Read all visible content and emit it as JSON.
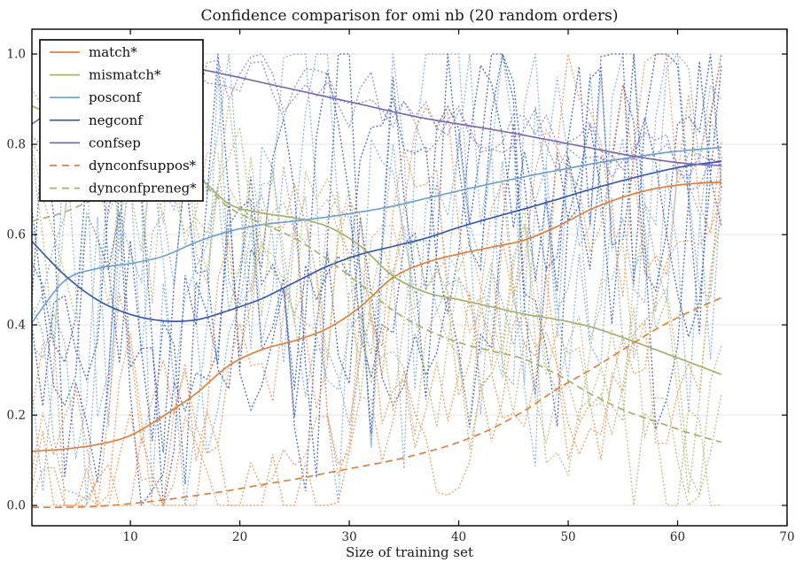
{
  "chart_data": {
    "type": "line",
    "title": "Confidence comparison for omi nb (20 random orders)",
    "xlabel": "Size of training set",
    "ylabel": "",
    "xlim": [
      1,
      70
    ],
    "ylim": [
      -0.045,
      1.055
    ],
    "xticks": [
      10,
      20,
      30,
      40,
      50,
      60,
      70
    ],
    "yticks": [
      0.0,
      0.2,
      0.4,
      0.6,
      0.8,
      1.0
    ],
    "grid": "horizontal",
    "legend_position": "upper-left",
    "x": [
      1,
      4,
      7,
      10,
      13,
      16,
      19,
      22,
      25,
      28,
      31,
      34,
      37,
      40,
      43,
      46,
      49,
      52,
      55,
      58,
      61,
      64
    ],
    "series": [
      {
        "name": "match*",
        "color": "#E0813C",
        "style": "solid",
        "values": [
          0.12,
          0.125,
          0.135,
          0.155,
          0.198,
          0.248,
          0.31,
          0.345,
          0.365,
          0.392,
          0.44,
          0.505,
          0.538,
          0.557,
          0.572,
          0.588,
          0.618,
          0.655,
          0.683,
          0.702,
          0.712,
          0.716
        ]
      },
      {
        "name": "mismatch*",
        "color": "#A6B16D",
        "style": "solid",
        "values": [
          0.885,
          0.852,
          0.815,
          0.788,
          0.762,
          0.732,
          0.668,
          0.648,
          0.637,
          0.618,
          0.575,
          0.508,
          0.472,
          0.456,
          0.44,
          0.424,
          0.412,
          0.396,
          0.372,
          0.345,
          0.318,
          0.29
        ]
      },
      {
        "name": "posconf",
        "color": "#6FA2CE",
        "style": "solid",
        "values": [
          0.405,
          0.498,
          0.525,
          0.536,
          0.552,
          0.583,
          0.607,
          0.622,
          0.63,
          0.639,
          0.65,
          0.663,
          0.68,
          0.697,
          0.713,
          0.728,
          0.742,
          0.756,
          0.768,
          0.779,
          0.787,
          0.793
        ]
      },
      {
        "name": "negconf",
        "color": "#3A5BAE",
        "style": "solid",
        "values": [
          0.585,
          0.51,
          0.455,
          0.423,
          0.409,
          0.411,
          0.432,
          0.458,
          0.494,
          0.53,
          0.556,
          0.574,
          0.592,
          0.616,
          0.637,
          0.657,
          0.678,
          0.7,
          0.72,
          0.738,
          0.753,
          0.762
        ]
      },
      {
        "name": "confsep",
        "color": "#7D6CB0",
        "style": "solid",
        "values": [
          0.845,
          0.893,
          0.932,
          0.956,
          0.968,
          0.967,
          0.953,
          0.937,
          0.921,
          0.905,
          0.889,
          0.872,
          0.857,
          0.845,
          0.833,
          0.82,
          0.806,
          0.792,
          0.778,
          0.766,
          0.757,
          0.753
        ]
      },
      {
        "name": "dynconfsuppos*",
        "color": "#E0813C",
        "style": "dashed",
        "values": [
          -0.004,
          -0.004,
          -0.002,
          0.004,
          0.012,
          0.022,
          0.033,
          0.046,
          0.058,
          0.072,
          0.086,
          0.1,
          0.118,
          0.14,
          0.17,
          0.21,
          0.258,
          0.3,
          0.345,
          0.39,
          0.428,
          0.46
        ]
      },
      {
        "name": "dynconfpreneg*",
        "color": "#A6B16D",
        "style": "dashed",
        "values": [
          0.63,
          0.65,
          0.682,
          0.71,
          0.726,
          0.722,
          0.66,
          0.625,
          0.592,
          0.545,
          0.49,
          0.432,
          0.39,
          0.361,
          0.342,
          0.324,
          0.29,
          0.248,
          0.212,
          0.186,
          0.161,
          0.14
        ]
      }
    ],
    "background_runs": {
      "description": "dotted noisy lines = individual runs over 20 random orders",
      "x_range": [
        1,
        64
      ],
      "line_style": "dotted",
      "runs": [
        {
          "color": "#8FB4DC",
          "base": "posconf",
          "amp": 0.36,
          "seed": 11
        },
        {
          "color": "#8FB4DC",
          "base": "posconf",
          "amp": 0.3,
          "seed": 12
        },
        {
          "color": "#8FB4DC",
          "base": "posconf",
          "amp": 0.26,
          "seed": 13
        },
        {
          "color": "#8FB4DC",
          "base": "posconf",
          "amp": 0.42,
          "seed": 14
        },
        {
          "color": "#4A68B8",
          "base": "negconf",
          "amp": 0.3,
          "seed": 21
        },
        {
          "color": "#4A68B8",
          "base": "negconf",
          "amp": 0.25,
          "seed": 22
        },
        {
          "color": "#4A68B8",
          "base": "negconf",
          "amp": 0.2,
          "seed": 23
        },
        {
          "color": "#4A68B8",
          "base": "negconf",
          "amp": 0.34,
          "seed": 24
        },
        {
          "color": "#EC9E66",
          "base": "match*",
          "amp": 0.22,
          "seed": 31
        },
        {
          "color": "#EC9E66",
          "base": "match*",
          "amp": 0.17,
          "seed": 32
        },
        {
          "color": "#EC9E66",
          "base": "dynconfsuppos*",
          "amp": 0.13,
          "seed": 33
        },
        {
          "color": "#EC9E66",
          "base": "dynconfsuppos*",
          "amp": 0.18,
          "seed": 34
        },
        {
          "color": "#B9C289",
          "base": "mismatch*",
          "amp": 0.21,
          "seed": 41
        },
        {
          "color": "#B9C289",
          "base": "mismatch*",
          "amp": 0.16,
          "seed": 42
        },
        {
          "color": "#B9C289",
          "base": "dynconfpreneg*",
          "amp": 0.14,
          "seed": 43
        },
        {
          "color": "#B9C289",
          "base": "dynconfpreneg*",
          "amp": 0.18,
          "seed": 44
        },
        {
          "color": "#998FC9",
          "base": "confsep",
          "amp": 0.055,
          "seed": 51
        },
        {
          "color": "#998FC9",
          "base": "confsep",
          "amp": 0.04,
          "seed": 52
        }
      ]
    },
    "colors": {
      "spine": "#000000",
      "grid": "#e3e3e3",
      "tick_label": "#2b2b2b",
      "title": "#1a1a1a",
      "legend_border": "#000000",
      "legend_bg": "#ffffff"
    }
  }
}
